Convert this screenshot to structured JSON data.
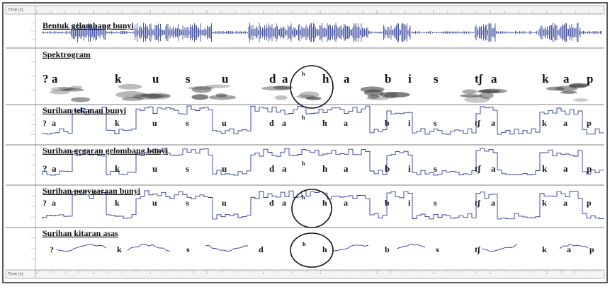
{
  "ruler_label": "Time (s)",
  "panels": [
    {
      "title": "Bentuk gelombang bunyi",
      "segments": []
    },
    {
      "title": "Spektrogram",
      "segments": [
        "?",
        "a",
        "k",
        "u",
        "s",
        "u",
        "d",
        "a",
        "h",
        "h",
        "a",
        "b",
        "i",
        "s",
        "tʃ",
        "a",
        "k",
        "a",
        "p"
      ]
    },
    {
      "title": "Surihan tekanan bunyi",
      "segments": [
        "?",
        "a",
        "k",
        "u",
        "s",
        "u",
        "d",
        "a",
        "h",
        "h",
        "a",
        "b",
        "i",
        "s",
        "tʃ",
        "a",
        "k",
        "a",
        "p"
      ]
    },
    {
      "title": "Surihan gegaran gelombang bunyi",
      "segments": [
        "?",
        "a",
        "k",
        "u",
        "s",
        "u",
        "d",
        "a",
        "h",
        "h",
        "a",
        "b",
        "i",
        "s",
        "tʃ",
        "a",
        "k",
        "a",
        "p"
      ]
    },
    {
      "title": "Surihan penyuaraan bunyi",
      "segments": [
        "?",
        "a",
        "k",
        "u",
        "s",
        "u",
        "d",
        "a",
        "h",
        "h",
        "a",
        "b",
        "i",
        "s",
        "tʃ",
        "a",
        "k",
        "a",
        "p"
      ]
    },
    {
      "title": "Surihan kitaran asas",
      "segments": [
        "?",
        "k",
        "s",
        "d",
        "h",
        "h",
        "b",
        "s",
        "tʃ",
        "k",
        "a",
        "p"
      ]
    }
  ]
}
